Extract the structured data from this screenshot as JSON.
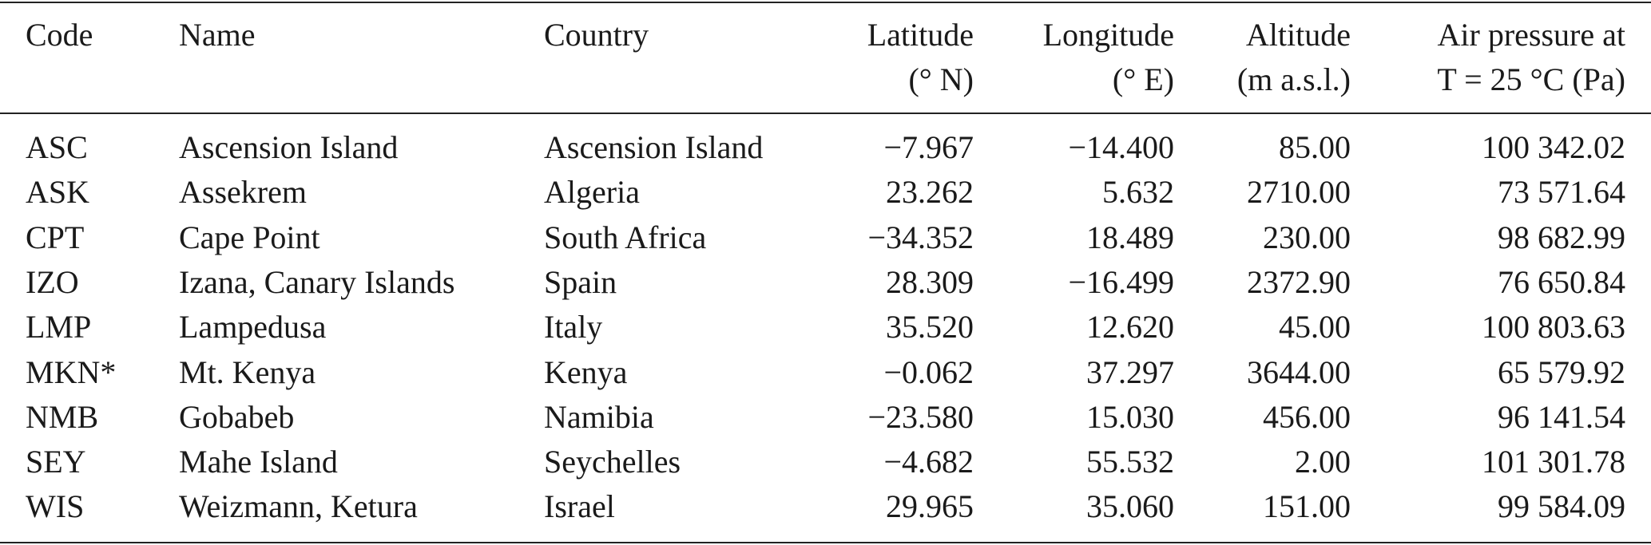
{
  "table": {
    "header": [
      [
        "Code"
      ],
      [
        "Name"
      ],
      [
        "Country"
      ],
      [
        "Latitude",
        "(° N)"
      ],
      [
        "Longitude",
        "(° E)"
      ],
      [
        "Altitude",
        "(m a.s.l.)"
      ],
      [
        "Air pressure at",
        "T = 25 °C (Pa)"
      ]
    ],
    "rows": [
      [
        "ASC",
        "Ascension Island",
        "Ascension Island",
        "−7.967",
        "−14.400",
        "85.00",
        "100 342.02"
      ],
      [
        "ASK",
        "Assekrem",
        "Algeria",
        "23.262",
        "5.632",
        "2710.00",
        "73 571.64"
      ],
      [
        "CPT",
        "Cape Point",
        "South Africa",
        "−34.352",
        "18.489",
        "230.00",
        "98 682.99"
      ],
      [
        "IZO",
        "Izana, Canary Islands",
        "Spain",
        "28.309",
        "−16.499",
        "2372.90",
        "76 650.84"
      ],
      [
        "LMP",
        "Lampedusa",
        "Italy",
        "35.520",
        "12.620",
        "45.00",
        "100 803.63"
      ],
      [
        "MKN*",
        "Mt. Kenya",
        "Kenya",
        "−0.062",
        "37.297",
        "3644.00",
        "65 579.92"
      ],
      [
        "NMB",
        "Gobabeb",
        "Namibia",
        "−23.580",
        "15.030",
        "456.00",
        "96 141.54"
      ],
      [
        "SEY",
        "Mahe Island",
        "Seychelles",
        "−4.682",
        "55.532",
        "2.00",
        "101 301.78"
      ],
      [
        "WIS",
        "Weizmann, Ketura",
        "Israel",
        "29.965",
        "35.060",
        "151.00",
        "99 584.09"
      ]
    ]
  }
}
